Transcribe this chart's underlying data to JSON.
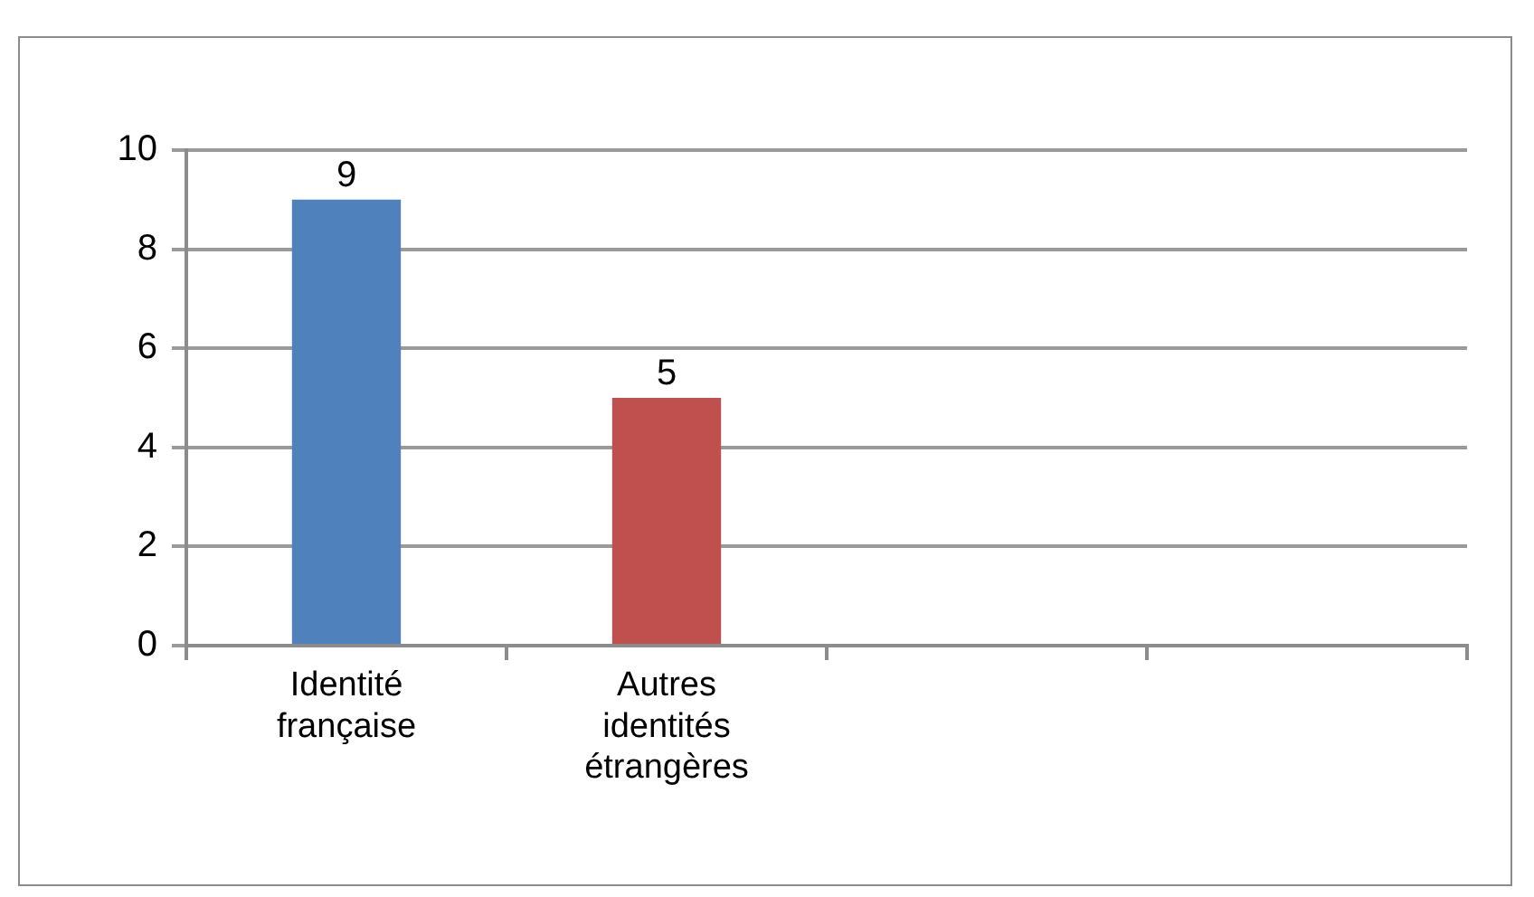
{
  "chart_data": {
    "type": "bar",
    "categories": [
      "Identité française",
      "Autres identités étrangères",
      null,
      null
    ],
    "values": [
      9,
      5,
      null,
      null
    ],
    "colors": [
      "#4f81bd",
      "#c0504d",
      null,
      null
    ],
    "ylim": [
      0,
      10
    ],
    "yticks": [
      0,
      2,
      4,
      6,
      8,
      10
    ],
    "grid": "y",
    "data_labels": true
  }
}
